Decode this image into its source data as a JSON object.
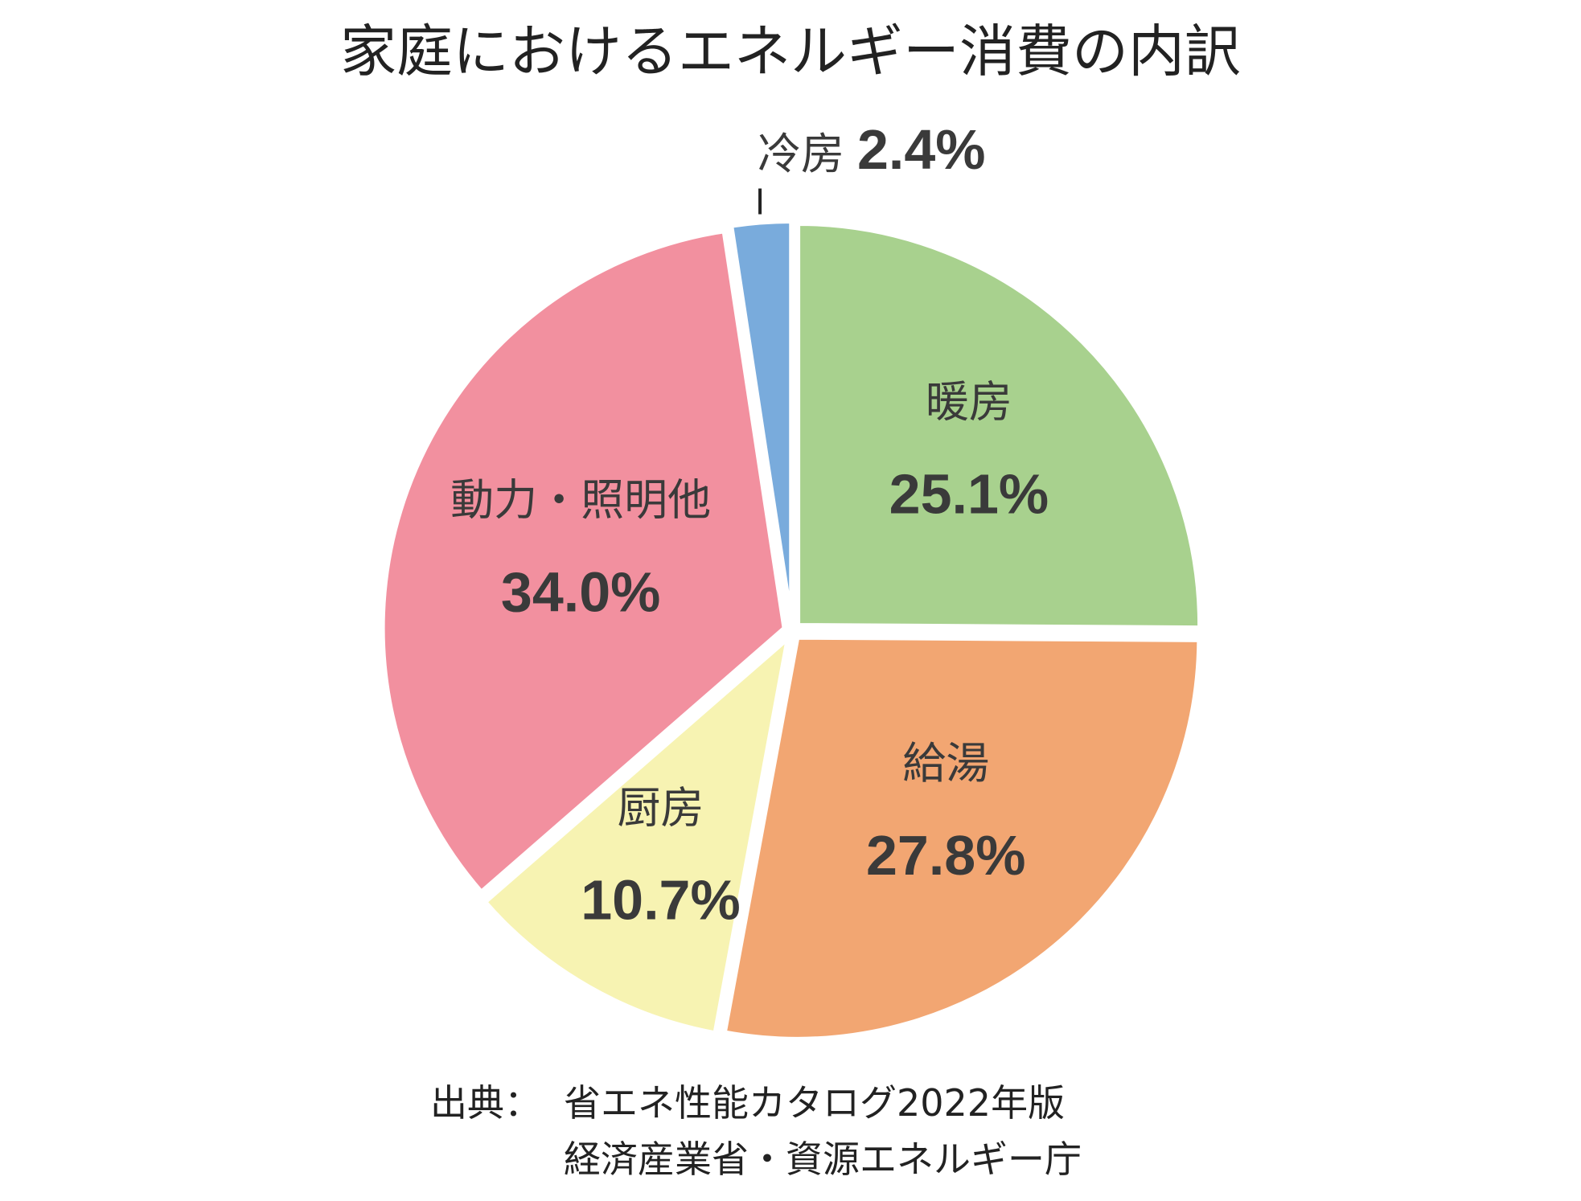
{
  "chart_data": {
    "type": "pie",
    "title": "家庭におけるエネルギー消費の内訳",
    "start": "12 o'clock, clockwise",
    "slices": [
      {
        "name": "暖房",
        "value": 25.1,
        "label": "25.1%",
        "color": "#a8d18e"
      },
      {
        "name": "給湯",
        "value": 27.8,
        "label": "27.8%",
        "color": "#f2a672"
      },
      {
        "name": "厨房",
        "value": 10.7,
        "label": "10.7%",
        "color": "#f7f3b2"
      },
      {
        "name": "動力・照明他",
        "value": 34.0,
        "label": "34.0%",
        "color": "#f2909f"
      },
      {
        "name": "冷房",
        "value": 2.4,
        "label": "2.4%",
        "color": "#79abdc"
      }
    ],
    "source": {
      "prefix": "出典：",
      "line1": "省エネ性能カタログ2022年版",
      "line2": "経済産業省・資源エネルギー庁"
    }
  }
}
